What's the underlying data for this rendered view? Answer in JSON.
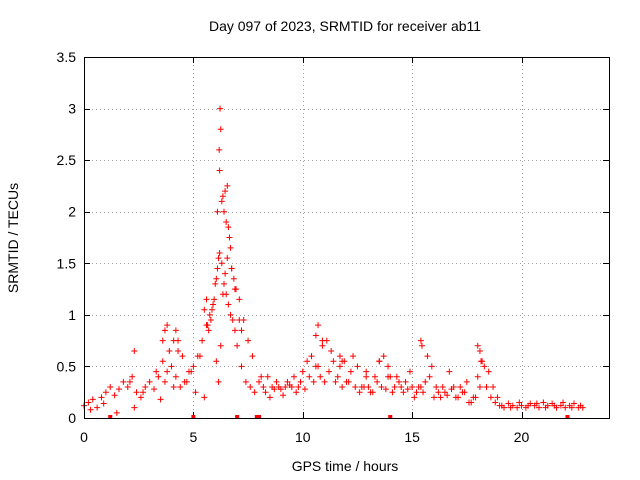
{
  "chart_data": {
    "type": "scatter",
    "title": "Day 097 of 2023, SRMTID for receiver ab11",
    "xlabel": "GPS time / hours",
    "ylabel": "SRMTID / TECUs",
    "xlim": [
      0,
      24
    ],
    "ylim": [
      0,
      3.5
    ],
    "x_ticks": [
      0,
      5,
      10,
      15,
      20
    ],
    "x_tick_labels": [
      "0",
      "5",
      "10",
      "15",
      "20"
    ],
    "y_ticks": [
      0,
      0.5,
      1,
      1.5,
      2,
      2.5,
      3,
      3.5
    ],
    "y_tick_labels": [
      "0",
      "0.5",
      "1",
      "1.5",
      "2",
      "2.5",
      "3",
      "3.5"
    ],
    "grid": true,
    "marker": "plus",
    "color": "#ff0000",
    "data_gaps_at_zero_hours": [
      1.2,
      5.0,
      7.0,
      7.9,
      8.0,
      14.0,
      22.1
    ],
    "series": [
      {
        "name": "SRMTID",
        "x": [
          0.0,
          0.2,
          0.4,
          0.6,
          0.8,
          1.0,
          1.2,
          1.4,
          1.6,
          1.8,
          2.0,
          2.2,
          2.4,
          2.6,
          2.8,
          3.0,
          3.2,
          3.4,
          3.6,
          3.8,
          4.0,
          4.2,
          4.4,
          4.6,
          4.8,
          5.0,
          5.2,
          5.4,
          5.6,
          5.8,
          5.9,
          6.0,
          6.1,
          6.2,
          6.3,
          6.4,
          6.5,
          6.6,
          6.7,
          6.8,
          6.9,
          7.0,
          7.2,
          7.4,
          7.6,
          7.8,
          8.0,
          8.2,
          8.4,
          8.6,
          8.8,
          9.0,
          9.2,
          9.4,
          9.6,
          9.8,
          10.0,
          10.2,
          10.4,
          10.6,
          10.8,
          11.0,
          11.2,
          11.4,
          11.6,
          11.8,
          12.0,
          12.2,
          12.4,
          12.6,
          12.8,
          13.0,
          13.2,
          13.4,
          13.6,
          13.8,
          14.0,
          14.2,
          14.4,
          14.6,
          14.8,
          15.0,
          15.2,
          15.4,
          15.6,
          15.8,
          16.0,
          16.2,
          16.4,
          16.6,
          16.8,
          17.0,
          17.2,
          17.4,
          17.6,
          17.8,
          18.0,
          18.2,
          18.4,
          18.6,
          18.8,
          19.0,
          19.2,
          19.4,
          19.6,
          19.8,
          20.0,
          20.2,
          20.4,
          20.6,
          20.8,
          21.0,
          21.2,
          21.4,
          21.6,
          21.8,
          22.0,
          22.2,
          22.4,
          22.6,
          22.8,
          0.3,
          0.9,
          1.5,
          2.1,
          2.3,
          2.7,
          3.3,
          3.5,
          3.7,
          3.9,
          4.1,
          4.3,
          4.5,
          4.7,
          4.9,
          5.1,
          5.3,
          5.5,
          5.7,
          6.05,
          6.15,
          6.25,
          6.35,
          6.45,
          6.55,
          6.65,
          6.75,
          6.85,
          6.95,
          7.1,
          7.3,
          7.5,
          7.7,
          8.1,
          8.3,
          8.5,
          8.7,
          8.9,
          9.1,
          9.3,
          9.5,
          9.7,
          9.9,
          10.1,
          10.3,
          10.5,
          10.7,
          10.9,
          11.1,
          11.3,
          11.5,
          11.7,
          11.9,
          12.1,
          12.3,
          12.5,
          12.7,
          12.9,
          13.1,
          13.3,
          13.5,
          13.7,
          13.9,
          14.1,
          14.3,
          14.5,
          14.7,
          14.9,
          15.1,
          15.3,
          15.5,
          15.7,
          15.9,
          16.1,
          16.3,
          16.5,
          16.7,
          16.9,
          17.1,
          17.3,
          17.5,
          17.7,
          17.9,
          18.1,
          18.3,
          18.5,
          18.7,
          18.9,
          19.1,
          19.5,
          19.9,
          20.3,
          20.7,
          21.1,
          21.5,
          21.9,
          22.3,
          22.7,
          6.2,
          6.22,
          6.1,
          6.18,
          6.3,
          6.4,
          6.5,
          6.6,
          6.7,
          6.75,
          6.55,
          6.45,
          6.35,
          6.25,
          6.15,
          6.05,
          5.95,
          5.85,
          5.75,
          5.65,
          4.1,
          4.2,
          4.3,
          10.6,
          10.7,
          10.9,
          11.7,
          11.8,
          12.9,
          13.5,
          13.9,
          15.4,
          15.45,
          18.0,
          18.1,
          18.15,
          3.6,
          3.7,
          3.8,
          2.3,
          5.6,
          5.5,
          7.1,
          7.2,
          6.9
        ],
        "y": [
          0.12,
          0.15,
          0.18,
          0.1,
          0.2,
          0.25,
          0.3,
          0.22,
          0.28,
          0.35,
          0.3,
          0.4,
          0.25,
          0.2,
          0.3,
          0.35,
          0.28,
          0.4,
          0.55,
          0.45,
          0.5,
          0.4,
          0.3,
          0.35,
          0.45,
          0.5,
          0.6,
          0.75,
          0.9,
          0.95,
          1.1,
          1.3,
          1.45,
          1.6,
          1.5,
          1.3,
          1.2,
          1.1,
          1.0,
          0.95,
          0.85,
          0.7,
          0.5,
          0.35,
          0.3,
          0.25,
          0.35,
          0.3,
          0.4,
          0.3,
          0.35,
          0.28,
          0.3,
          0.32,
          0.4,
          0.3,
          0.45,
          0.55,
          0.6,
          0.5,
          0.4,
          0.35,
          0.45,
          0.55,
          0.4,
          0.3,
          0.35,
          0.45,
          0.3,
          0.25,
          0.3,
          0.3,
          0.25,
          0.35,
          0.3,
          0.28,
          0.4,
          0.3,
          0.35,
          0.25,
          0.28,
          0.3,
          0.25,
          0.3,
          0.35,
          0.4,
          0.2,
          0.25,
          0.3,
          0.22,
          0.28,
          0.2,
          0.3,
          0.25,
          0.15,
          0.2,
          0.4,
          0.55,
          0.3,
          0.2,
          0.15,
          0.12,
          0.1,
          0.14,
          0.12,
          0.1,
          0.12,
          0.1,
          0.14,
          0.12,
          0.1,
          0.15,
          0.12,
          0.14,
          0.1,
          0.12,
          0.1,
          0.12,
          0.14,
          0.1,
          0.1,
          0.08,
          0.14,
          0.05,
          0.35,
          0.1,
          0.25,
          0.45,
          0.18,
          0.35,
          0.65,
          0.3,
          0.75,
          0.6,
          0.35,
          0.45,
          0.25,
          0.6,
          0.2,
          0.85,
          0.55,
          0.35,
          0.7,
          1.2,
          1.4,
          1.55,
          1.75,
          1.45,
          1.35,
          1.25,
          1.15,
          0.95,
          0.75,
          0.6,
          0.4,
          0.25,
          0.2,
          0.28,
          0.3,
          0.22,
          0.35,
          0.3,
          0.25,
          0.35,
          0.28,
          0.4,
          0.35,
          0.5,
          0.7,
          0.75,
          0.65,
          0.35,
          0.5,
          0.55,
          0.35,
          0.6,
          0.5,
          0.3,
          0.4,
          0.25,
          0.4,
          0.55,
          0.6,
          0.5,
          0.25,
          0.4,
          0.3,
          0.35,
          0.45,
          0.2,
          0.3,
          0.25,
          0.6,
          0.5,
          0.3,
          0.2,
          0.25,
          0.45,
          0.3,
          0.2,
          0.25,
          0.35,
          0.15,
          0.2,
          0.3,
          0.5,
          0.45,
          0.3,
          0.2,
          0.12,
          0.1,
          0.15,
          0.12,
          0.14,
          0.1,
          0.12,
          0.15,
          0.1,
          0.12,
          2.4,
          3.0,
          2.0,
          2.6,
          2.1,
          2.0,
          1.9,
          1.85,
          1.65,
          1.45,
          2.25,
          2.2,
          2.15,
          2.8,
          1.55,
          1.35,
          1.15,
          1.05,
          1.0,
          0.9,
          0.75,
          0.85,
          0.65,
          0.8,
          0.9,
          0.75,
          0.6,
          0.55,
          0.45,
          0.55,
          0.4,
          0.75,
          0.7,
          0.7,
          0.65,
          0.55,
          0.75,
          0.85,
          0.9,
          0.65,
          1.15,
          1.05,
          0.95,
          0.85,
          1.25
        ]
      }
    ]
  }
}
